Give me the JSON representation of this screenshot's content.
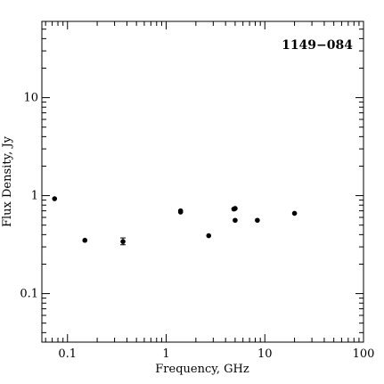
{
  "chart_data": {
    "type": "scatter",
    "title": "1149−084",
    "xlabel": "Frequency, GHz",
    "ylabel": "Flux Density, Jy",
    "xscale": "log",
    "yscale": "log",
    "xlim": [
      0.055,
      100
    ],
    "ylim": [
      0.032,
      60
    ],
    "xticks": [
      {
        "value": 0.1,
        "label": "0.1"
      },
      {
        "value": 1,
        "label": "1"
      },
      {
        "value": 10,
        "label": "10"
      },
      {
        "value": 100,
        "label": "100"
      }
    ],
    "yticks": [
      {
        "value": 0.1,
        "label": "0.1"
      },
      {
        "value": 1,
        "label": "1"
      },
      {
        "value": 10,
        "label": "10"
      }
    ],
    "title_position": "top-right",
    "grid": false,
    "points": [
      {
        "x": 0.074,
        "y": 0.93
      },
      {
        "x": 0.15,
        "y": 0.35
      },
      {
        "x": 0.365,
        "y": 0.34,
        "yerr_low": 0.315,
        "yerr_high": 0.37
      },
      {
        "x": 1.4,
        "y": 0.7
      },
      {
        "x": 1.4,
        "y": 0.68
      },
      {
        "x": 2.7,
        "y": 0.39
      },
      {
        "x": 4.85,
        "y": 0.73
      },
      {
        "x": 5.0,
        "y": 0.74
      },
      {
        "x": 5.0,
        "y": 0.56
      },
      {
        "x": 8.4,
        "y": 0.56
      },
      {
        "x": 20.0,
        "y": 0.66
      }
    ],
    "marker_color": "#000000"
  }
}
